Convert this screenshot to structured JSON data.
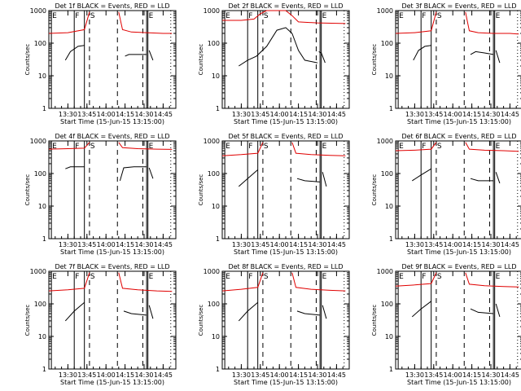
{
  "colors": {
    "events": "#000000",
    "lld": "#e00000",
    "axes": "#000000",
    "background": "#ffffff"
  },
  "common": {
    "xlabel": "Start Time (15-Jun-15 13:15:00)",
    "ylabel": "Counts/sec",
    "x_tick_labels": [
      "13:30",
      "13:45",
      "14:00",
      "14:15",
      "14:30",
      "14:45"
    ],
    "y_tick_labels": [
      "1",
      "10",
      "100",
      "1000"
    ],
    "xlim": [
      "13:15",
      "14:55"
    ],
    "ylim": [
      1,
      1000
    ],
    "y_scale": "log",
    "markers": [
      {
        "label": "E",
        "time": "13:17",
        "style": "solid"
      },
      {
        "label": "F",
        "time": "13:35",
        "style": "solid"
      },
      {
        "label": "",
        "time": "13:43",
        "style": "solid"
      },
      {
        "label": "S",
        "time": "13:47",
        "style": "dashed"
      },
      {
        "label": "",
        "time": "14:09",
        "style": "dashed"
      },
      {
        "label": "",
        "time": "14:29",
        "style": "dashed"
      },
      {
        "label": "",
        "time": "14:32",
        "style": "solid"
      },
      {
        "label": "E",
        "time": "14:33",
        "style": "solid"
      },
      {
        "label": "",
        "time": "14:51",
        "style": "dotted"
      }
    ]
  },
  "chart_data": [
    {
      "type": "line",
      "title": "Det 1f BLACK = Events, RED = LLD",
      "series": [
        {
          "color": "red",
          "segments": [
            {
              "x": [
                "13:15",
                "13:30",
                "13:43",
                "13:47"
              ],
              "y": [
                200,
                210,
                260,
                900
              ]
            },
            {
              "x": [
                "14:10",
                "14:13",
                "14:20",
                "14:32",
                "14:45",
                "14:52"
              ],
              "y": [
                900,
                260,
                220,
                210,
                200,
                200
              ]
            }
          ]
        },
        {
          "color": "black",
          "segments": [
            {
              "x": [
                "13:28",
                "13:32",
                "13:38",
                "13:43"
              ],
              "y": [
                30,
                55,
                80,
                85
              ]
            },
            {
              "x": [
                "14:15",
                "14:18",
                "14:25",
                "14:32"
              ],
              "y": [
                40,
                45,
                45,
                45
              ]
            },
            {
              "x": [
                "14:34",
                "14:37"
              ],
              "y": [
                60,
                30
              ]
            }
          ]
        }
      ]
    },
    {
      "type": "line",
      "title": "Det 2f BLACK = Events, RED = LLD",
      "series": [
        {
          "color": "red",
          "segments": [
            {
              "x": [
                "13:15",
                "13:30",
                "13:40",
                "13:45",
                "13:50",
                "14:00",
                "14:05",
                "14:10",
                "14:15",
                "14:30",
                "14:52"
              ],
              "y": [
                500,
                500,
                550,
                800,
                1000,
                1000,
                1000,
                700,
                450,
                420,
                400
              ]
            }
          ]
        },
        {
          "color": "black",
          "segments": [
            {
              "x": [
                "13:28",
                "13:35",
                "13:42",
                "13:50",
                "13:58",
                "14:05",
                "14:10"
              ],
              "y": [
                20,
                30,
                40,
                80,
                250,
                300,
                200
              ]
            },
            {
              "x": [
                "14:10",
                "14:15",
                "14:20",
                "14:30"
              ],
              "y": [
                200,
                60,
                30,
                25
              ]
            },
            {
              "x": [
                "14:31",
                "14:33",
                "14:36"
              ],
              "y": [
                55,
                50,
                25
              ]
            }
          ]
        }
      ]
    },
    {
      "type": "line",
      "title": "Det 3f BLACK = Events, RED = LLD",
      "series": [
        {
          "color": "red",
          "segments": [
            {
              "x": [
                "13:15",
                "13:30",
                "13:43",
                "13:47"
              ],
              "y": [
                200,
                210,
                240,
                900
              ]
            },
            {
              "x": [
                "14:10",
                "14:13",
                "14:20",
                "14:32",
                "14:45",
                "14:52"
              ],
              "y": [
                900,
                240,
                210,
                200,
                200,
                190
              ]
            }
          ]
        },
        {
          "color": "black",
          "segments": [
            {
              "x": [
                "13:29",
                "13:33",
                "13:38",
                "13:43"
              ],
              "y": [
                30,
                60,
                80,
                85
              ]
            },
            {
              "x": [
                "14:14",
                "14:18",
                "14:25",
                "14:32"
              ],
              "y": [
                45,
                55,
                50,
                45
              ]
            },
            {
              "x": [
                "14:34",
                "14:37"
              ],
              "y": [
                60,
                25
              ]
            }
          ]
        }
      ]
    },
    {
      "type": "line",
      "title": "Det 4f BLACK = Events, RED = LLD",
      "series": [
        {
          "color": "red",
          "segments": [
            {
              "x": [
                "13:15",
                "13:30",
                "13:43",
                "13:47"
              ],
              "y": [
                560,
                580,
                600,
                900
              ]
            },
            {
              "x": [
                "14:10",
                "14:13",
                "14:25",
                "14:40",
                "14:52"
              ],
              "y": [
                900,
                620,
                580,
                560,
                550
              ]
            }
          ]
        },
        {
          "color": "black",
          "segments": [
            {
              "x": [
                "13:28",
                "13:32",
                "13:43"
              ],
              "y": [
                140,
                160,
                160
              ]
            },
            {
              "x": [
                "14:11",
                "14:14",
                "14:22",
                "14:32"
              ],
              "y": [
                60,
                150,
                160,
                160
              ]
            },
            {
              "x": [
                "14:34",
                "14:37"
              ],
              "y": [
                150,
                70
              ]
            }
          ]
        }
      ]
    },
    {
      "type": "line",
      "title": "Det 5f BLACK = Events, RED = LLD",
      "series": [
        {
          "color": "red",
          "segments": [
            {
              "x": [
                "13:15",
                "13:30",
                "13:43",
                "13:47"
              ],
              "y": [
                350,
                380,
                420,
                900
              ]
            },
            {
              "x": [
                "14:10",
                "14:13",
                "14:25",
                "14:40",
                "14:52"
              ],
              "y": [
                900,
                420,
                380,
                360,
                350
              ]
            }
          ]
        },
        {
          "color": "black",
          "segments": [
            {
              "x": [
                "13:28",
                "13:35",
                "13:43"
              ],
              "y": [
                40,
                70,
                130
              ]
            },
            {
              "x": [
                "14:14",
                "14:20",
                "14:32"
              ],
              "y": [
                70,
                60,
                55
              ]
            },
            {
              "x": [
                "14:34",
                "14:37"
              ],
              "y": [
                110,
                40
              ]
            }
          ]
        }
      ]
    },
    {
      "type": "line",
      "title": "Det 6f BLACK = Events, RED = LLD",
      "series": [
        {
          "color": "red",
          "segments": [
            {
              "x": [
                "13:15",
                "13:30",
                "13:43",
                "13:47"
              ],
              "y": [
                500,
                520,
                560,
                900
              ]
            },
            {
              "x": [
                "14:10",
                "14:13",
                "14:25",
                "14:40",
                "14:52"
              ],
              "y": [
                900,
                560,
                520,
                500,
                480
              ]
            }
          ]
        },
        {
          "color": "black",
          "segments": [
            {
              "x": [
                "13:28",
                "13:35",
                "13:43"
              ],
              "y": [
                60,
                90,
                140
              ]
            },
            {
              "x": [
                "14:14",
                "14:20",
                "14:32"
              ],
              "y": [
                70,
                60,
                60
              ]
            },
            {
              "x": [
                "14:34",
                "14:37"
              ],
              "y": [
                110,
                50
              ]
            }
          ]
        }
      ]
    },
    {
      "type": "line",
      "title": "Det 7f BLACK = Events, RED = LLD",
      "series": [
        {
          "color": "red",
          "segments": [
            {
              "x": [
                "13:15",
                "13:30",
                "13:43",
                "13:47"
              ],
              "y": [
                250,
                270,
                300,
                900
              ]
            },
            {
              "x": [
                "14:10",
                "14:13",
                "14:25",
                "14:40",
                "14:52"
              ],
              "y": [
                900,
                300,
                270,
                250,
                240
              ]
            }
          ]
        },
        {
          "color": "black",
          "segments": [
            {
              "x": [
                "13:28",
                "13:35",
                "13:43"
              ],
              "y": [
                30,
                60,
                110
              ]
            },
            {
              "x": [
                "14:14",
                "14:20",
                "14:32"
              ],
              "y": [
                60,
                50,
                45
              ]
            },
            {
              "x": [
                "14:34",
                "14:37"
              ],
              "y": [
                90,
                35
              ]
            }
          ]
        }
      ]
    },
    {
      "type": "line",
      "title": "Det 8f BLACK = Events, RED = LLD",
      "series": [
        {
          "color": "red",
          "segments": [
            {
              "x": [
                "13:15",
                "13:30",
                "13:43",
                "13:47"
              ],
              "y": [
                250,
                280,
                320,
                900
              ]
            },
            {
              "x": [
                "14:10",
                "14:13",
                "14:25",
                "14:40",
                "14:52"
              ],
              "y": [
                900,
                320,
                280,
                260,
                250
              ]
            }
          ]
        },
        {
          "color": "black",
          "segments": [
            {
              "x": [
                "13:28",
                "13:35",
                "13:43"
              ],
              "y": [
                30,
                60,
                110
              ]
            },
            {
              "x": [
                "14:14",
                "14:20",
                "14:32"
              ],
              "y": [
                60,
                50,
                45
              ]
            },
            {
              "x": [
                "14:34",
                "14:37"
              ],
              "y": [
                90,
                35
              ]
            }
          ]
        }
      ]
    },
    {
      "type": "line",
      "title": "Det 9f BLACK = Events, RED = LLD",
      "series": [
        {
          "color": "red",
          "segments": [
            {
              "x": [
                "13:15",
                "13:30",
                "13:43",
                "13:47"
              ],
              "y": [
                350,
                380,
                420,
                900
              ]
            },
            {
              "x": [
                "14:10",
                "14:13",
                "14:25",
                "14:40",
                "14:52"
              ],
              "y": [
                900,
                400,
                360,
                340,
                330
              ]
            }
          ]
        },
        {
          "color": "black",
          "segments": [
            {
              "x": [
                "13:28",
                "13:35",
                "13:43"
              ],
              "y": [
                40,
                70,
                120
              ]
            },
            {
              "x": [
                "14:14",
                "14:20",
                "14:32"
              ],
              "y": [
                70,
                55,
                50
              ]
            },
            {
              "x": [
                "14:34",
                "14:37"
              ],
              "y": [
                100,
                40
              ]
            }
          ]
        }
      ]
    }
  ]
}
